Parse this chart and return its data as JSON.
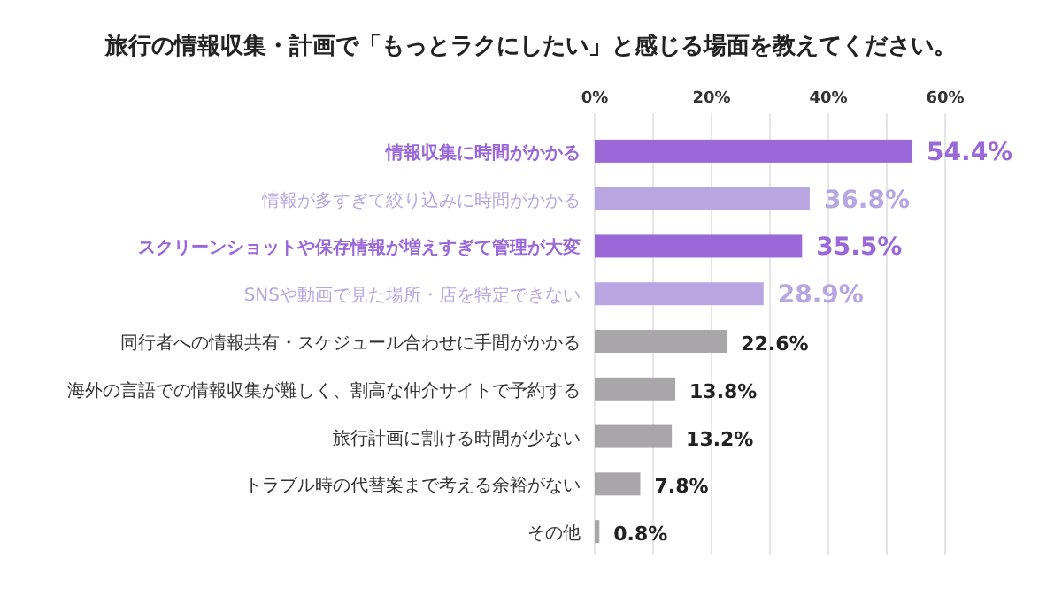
{
  "chart_data": {
    "type": "bar",
    "orientation": "horizontal",
    "title": "旅行の情報収集・計画で「もっとラクにしたい」と感じる場面を教えてください。",
    "categories": [
      "情報収集に時間がかかる",
      "情報が多すぎて絞り込みに時間がかかる",
      "スクリーンショットや保存情報が増えすぎて管理が大変",
      "SNSや動画で見た場所・店を特定できない",
      "同行者への情報共有・スケジュール合わせに手間がかかる",
      "海外の言語での情報収集が難しく、割高な仲介サイトで予約する",
      "旅行計画に割ける時間が少ない",
      "トラブル時の代替案まで考える余裕がない",
      "その他"
    ],
    "values": [
      54.4,
      36.8,
      35.5,
      28.9,
      22.6,
      13.8,
      13.2,
      7.8,
      0.8
    ],
    "colors": [
      "#9a68d8",
      "#b8a6e2",
      "#9a68d8",
      "#b8a6e2",
      "#a9a6a9",
      "#a9a6a9",
      "#a9a6a9",
      "#a9a6a9",
      "#a9a6a9"
    ],
    "value_labels": [
      "54.4%",
      "36.8%",
      "35.5%",
      "28.9%",
      "22.6%",
      "13.8%",
      "13.2%",
      "7.8%",
      "0.8%"
    ],
    "xlim": [
      0,
      60
    ],
    "xticks": [
      {
        "value": 0,
        "label": "0%"
      },
      {
        "value": 10,
        "label": null
      },
      {
        "value": 20,
        "label": "20%"
      },
      {
        "value": 30,
        "label": null
      },
      {
        "value": 40,
        "label": "40%"
      },
      {
        "value": 50,
        "label": null
      },
      {
        "value": 60,
        "label": "60%"
      }
    ],
    "grid": "x"
  }
}
